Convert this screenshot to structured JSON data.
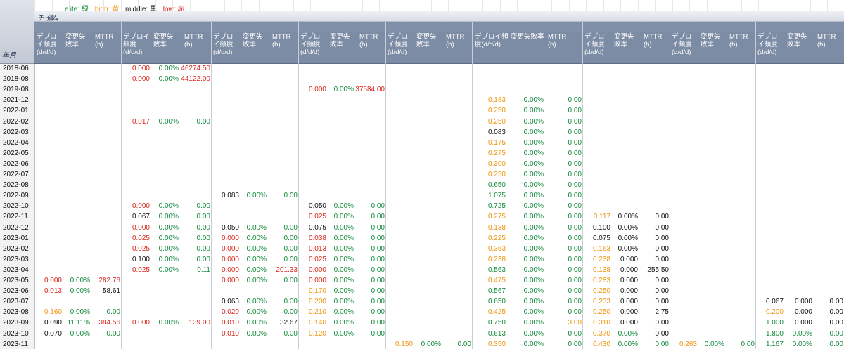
{
  "legend": [
    {
      "text": "elite: 緑",
      "color": "#118a3a"
    },
    {
      "text": "high: 黄",
      "color": "#f0940a"
    },
    {
      "text": "middle: 黒",
      "color": "#111111"
    },
    {
      "text": "low: 赤",
      "color": "#d9261c"
    }
  ],
  "header": {
    "team_label": "チーム",
    "value_label": "値",
    "row_header_label": "年月",
    "groups": [
      [
        "デプロ\nイ頻度\n(d/d/d)",
        "変更失\n敗率",
        "MTTR\n(h)"
      ],
      [
        "デプロイ\n頻度\n(d/d/d)",
        "変更失\n敗率",
        "MTTR\n(h)"
      ],
      [
        "デプロ\nイ頻度\n(d/d/d)",
        "変更失\n敗率",
        "MTTR\n(h)"
      ],
      [
        "デプロ\nイ頻度\n(d/d/d)",
        "変更失\n敗率",
        "MTTR\n(h)"
      ],
      [
        "デプロ\nイ頻度\n(d/d/d)",
        "変更失\n敗率",
        "MTTR\n(h)"
      ],
      [
        "デプロイ頻\n度(d/d/d)",
        "変更失敗率",
        "MTTR\n(h)"
      ],
      [
        "デプロ\nイ頻度\n(d/d/d)",
        "変更失\n敗率",
        "MTTR\n(h)"
      ],
      [
        "デプロ\nイ頻度\n(d/d/d)",
        "変更失\n敗率",
        "MTTR\n(h)"
      ],
      [
        "デプロ\nイ頻度\n(d/d/d)",
        "変更失\n敗率",
        "MTTR\n(h)"
      ]
    ]
  },
  "colors": {
    "e": "#118a3a",
    "h": "#f0940a",
    "m": "#111111",
    "l": "#d9261c"
  },
  "rows": [
    {
      "ym": "2018-06",
      "cells": [
        null,
        [
          "0.000",
          "l",
          "0.00%",
          "e",
          "46274.50",
          "l"
        ],
        null,
        null,
        null,
        null,
        null,
        null,
        null
      ]
    },
    {
      "ym": "2018-08",
      "cells": [
        null,
        [
          "0.000",
          "l",
          "0.00%",
          "e",
          "44122.00",
          "l"
        ],
        null,
        null,
        null,
        null,
        null,
        null,
        null
      ]
    },
    {
      "ym": "2019-08",
      "cells": [
        null,
        null,
        null,
        [
          "0.000",
          "l",
          "0.00%",
          "e",
          "37584.00",
          "l"
        ],
        null,
        null,
        null,
        null,
        null
      ]
    },
    {
      "ym": "2021-12",
      "cells": [
        null,
        null,
        null,
        null,
        null,
        [
          "0.183",
          "h",
          "0.00%",
          "e",
          "0.00",
          "e"
        ],
        null,
        null,
        null
      ]
    },
    {
      "ym": "2022-01",
      "cells": [
        null,
        null,
        null,
        null,
        null,
        [
          "0.250",
          "h",
          "0.00%",
          "e",
          "0.00",
          "e"
        ],
        null,
        null,
        null
      ]
    },
    {
      "ym": "2022-02",
      "cells": [
        null,
        [
          "0.017",
          "l",
          "0.00%",
          "e",
          "0.00",
          "e"
        ],
        null,
        null,
        null,
        [
          "0.250",
          "h",
          "0.00%",
          "e",
          "0.00",
          "e"
        ],
        null,
        null,
        null
      ]
    },
    {
      "ym": "2022-03",
      "cells": [
        null,
        null,
        null,
        null,
        null,
        [
          "0.083",
          "m",
          "0.00%",
          "e",
          "0.00",
          "e"
        ],
        null,
        null,
        null
      ]
    },
    {
      "ym": "2022-04",
      "cells": [
        null,
        null,
        null,
        null,
        null,
        [
          "0.175",
          "h",
          "0.00%",
          "e",
          "0.00",
          "e"
        ],
        null,
        null,
        null
      ]
    },
    {
      "ym": "2022-05",
      "cells": [
        null,
        null,
        null,
        null,
        null,
        [
          "0.275",
          "h",
          "0.00%",
          "e",
          "0.00",
          "e"
        ],
        null,
        null,
        null
      ]
    },
    {
      "ym": "2022-06",
      "cells": [
        null,
        null,
        null,
        null,
        null,
        [
          "0.300",
          "h",
          "0.00%",
          "e",
          "0.00",
          "e"
        ],
        null,
        null,
        null
      ]
    },
    {
      "ym": "2022-07",
      "cells": [
        null,
        null,
        null,
        null,
        null,
        [
          "0.250",
          "h",
          "0.00%",
          "e",
          "0.00",
          "e"
        ],
        null,
        null,
        null
      ]
    },
    {
      "ym": "2022-08",
      "cells": [
        null,
        null,
        null,
        null,
        null,
        [
          "0.650",
          "e",
          "0.00%",
          "e",
          "0.00",
          "e"
        ],
        null,
        null,
        null
      ]
    },
    {
      "ym": "2022-09",
      "cells": [
        null,
        null,
        [
          "0.083",
          "m",
          "0.00%",
          "e",
          "0.00",
          "e"
        ],
        null,
        null,
        [
          "1.075",
          "e",
          "0.00%",
          "e",
          "0.00",
          "e"
        ],
        null,
        null,
        null
      ]
    },
    {
      "ym": "2022-10",
      "cells": [
        null,
        [
          "0.000",
          "l",
          "0.00%",
          "e",
          "0.00",
          "e"
        ],
        null,
        [
          "0.050",
          "m",
          "0.00%",
          "e",
          "0.00",
          "e"
        ],
        null,
        [
          "0.725",
          "e",
          "0.00%",
          "e",
          "0.00",
          "e"
        ],
        null,
        null,
        null
      ]
    },
    {
      "ym": "2022-11",
      "cells": [
        null,
        [
          "0.067",
          "m",
          "0.00%",
          "e",
          "0.00",
          "e"
        ],
        null,
        [
          "0.025",
          "l",
          "0.00%",
          "e",
          "0.00",
          "e"
        ],
        null,
        [
          "0.275",
          "h",
          "0.00%",
          "e",
          "0.00",
          "e"
        ],
        [
          "0.117",
          "h",
          "0.00%",
          "m",
          "0.00",
          "m"
        ],
        null,
        null
      ]
    },
    {
      "ym": "2022-12",
      "cells": [
        null,
        [
          "0.000",
          "l",
          "0.00%",
          "e",
          "0.00",
          "e"
        ],
        [
          "0.050",
          "m",
          "0.00%",
          "e",
          "0.00",
          "e"
        ],
        [
          "0.075",
          "m",
          "0.00%",
          "e",
          "0.00",
          "e"
        ],
        null,
        [
          "0.138",
          "h",
          "0.00%",
          "e",
          "0.00",
          "e"
        ],
        [
          "0.100",
          "m",
          "0.00%",
          "m",
          "0.00",
          "m"
        ],
        null,
        null
      ]
    },
    {
      "ym": "2023-01",
      "cells": [
        null,
        [
          "0.025",
          "l",
          "0.00%",
          "e",
          "0.00",
          "e"
        ],
        [
          "0.000",
          "l",
          "0.00%",
          "e",
          "0.00",
          "e"
        ],
        [
          "0.038",
          "l",
          "0.00%",
          "e",
          "0.00",
          "e"
        ],
        null,
        [
          "0.225",
          "h",
          "0.00%",
          "e",
          "0.00",
          "e"
        ],
        [
          "0.075",
          "m",
          "0.00%",
          "m",
          "0.00",
          "m"
        ],
        null,
        null
      ]
    },
    {
      "ym": "2023-02",
      "cells": [
        null,
        [
          "0.025",
          "l",
          "0.00%",
          "e",
          "0.00",
          "e"
        ],
        [
          "0.000",
          "l",
          "0.00%",
          "e",
          "0.00",
          "e"
        ],
        [
          "0.013",
          "l",
          "0.00%",
          "e",
          "0.00",
          "e"
        ],
        null,
        [
          "0.363",
          "h",
          "0.00%",
          "e",
          "0.00",
          "e"
        ],
        [
          "0.163",
          "h",
          "0.00%",
          "m",
          "0.00",
          "m"
        ],
        null,
        null
      ]
    },
    {
      "ym": "2023-03",
      "cells": [
        null,
        [
          "0.100",
          "m",
          "0.00%",
          "e",
          "0.00",
          "e"
        ],
        [
          "0.000",
          "l",
          "0.00%",
          "e",
          "0.00",
          "e"
        ],
        [
          "0.025",
          "l",
          "0.00%",
          "e",
          "0.00",
          "e"
        ],
        null,
        [
          "0.238",
          "h",
          "0.00%",
          "e",
          "0.00",
          "e"
        ],
        [
          "0.238",
          "h",
          "0.000",
          "m",
          "0.00",
          "m"
        ],
        null,
        null
      ]
    },
    {
      "ym": "2023-04",
      "cells": [
        null,
        [
          "0.025",
          "l",
          "0.00%",
          "e",
          "0.11",
          "e"
        ],
        [
          "0.000",
          "l",
          "0.00%",
          "e",
          "201.33",
          "l"
        ],
        [
          "0.000",
          "l",
          "0.00%",
          "e",
          "0.00",
          "e"
        ],
        null,
        [
          "0.563",
          "e",
          "0.00%",
          "e",
          "0.00",
          "e"
        ],
        [
          "0.138",
          "h",
          "0.000",
          "m",
          "255.50",
          "m"
        ],
        null,
        null
      ]
    },
    {
      "ym": "2023-05",
      "cells": [
        [
          "0.000",
          "l",
          "0.00%",
          "e",
          "282.76",
          "l"
        ],
        null,
        [
          "0.000",
          "l",
          "0.00%",
          "e",
          "0.00",
          "e"
        ],
        [
          "0.000",
          "l",
          "0.00%",
          "e",
          "0.00",
          "e"
        ],
        null,
        [
          "0.475",
          "h",
          "0.00%",
          "e",
          "0.00",
          "e"
        ],
        [
          "0.283",
          "h",
          "0.000",
          "m",
          "0.00",
          "m"
        ],
        null,
        null
      ]
    },
    {
      "ym": "2023-06",
      "cells": [
        [
          "0.013",
          "l",
          "0.00%",
          "e",
          "58.61",
          "m"
        ],
        null,
        null,
        [
          "0.170",
          "h",
          "0.00%",
          "e",
          "0.00",
          "e"
        ],
        null,
        [
          "0.567",
          "e",
          "0.00%",
          "e",
          "0.00",
          "e"
        ],
        [
          "0.250",
          "h",
          "0.000",
          "m",
          "0.00",
          "m"
        ],
        null,
        null
      ]
    },
    {
      "ym": "2023-07",
      "cells": [
        null,
        null,
        [
          "0.063",
          "m",
          "0.00%",
          "e",
          "0.00",
          "e"
        ],
        [
          "0.200",
          "h",
          "0.00%",
          "e",
          "0.00",
          "e"
        ],
        null,
        [
          "0.650",
          "e",
          "0.00%",
          "e",
          "0.00",
          "e"
        ],
        [
          "0.233",
          "h",
          "0.000",
          "m",
          "0.00",
          "m"
        ],
        null,
        [
          "0.067",
          "m",
          "0.000",
          "m",
          "0.00",
          "m"
        ]
      ]
    },
    {
      "ym": "2023-08",
      "cells": [
        [
          "0.160",
          "h",
          "0.00%",
          "e",
          "0.00",
          "e"
        ],
        null,
        [
          "0.020",
          "l",
          "0.00%",
          "e",
          "0.00",
          "e"
        ],
        [
          "0.210",
          "h",
          "0.00%",
          "e",
          "0.00",
          "e"
        ],
        null,
        [
          "0.425",
          "h",
          "0.00%",
          "e",
          "0.00",
          "e"
        ],
        [
          "0.250",
          "h",
          "0.000",
          "m",
          "2.75",
          "m"
        ],
        null,
        [
          "0.200",
          "h",
          "0.000",
          "m",
          "0.00",
          "m"
        ]
      ]
    },
    {
      "ym": "2023-09",
      "cells": [
        [
          "0.090",
          "m",
          "11.11%",
          "e",
          "384.56",
          "l"
        ],
        [
          "0.000",
          "l",
          "0.00%",
          "e",
          "139.00",
          "l"
        ],
        [
          "0.010",
          "l",
          "0.00%",
          "e",
          "32.67",
          "m"
        ],
        [
          "0.140",
          "h",
          "0.00%",
          "e",
          "0.00",
          "e"
        ],
        null,
        [
          "0.750",
          "e",
          "0.00%",
          "e",
          "3.00",
          "h"
        ],
        [
          "0.310",
          "h",
          "0.000",
          "m",
          "0.00",
          "m"
        ],
        null,
        [
          "1.000",
          "e",
          "0.000",
          "m",
          "0.00",
          "m"
        ]
      ]
    },
    {
      "ym": "2023-10",
      "cells": [
        [
          "0.070",
          "m",
          "0.00%",
          "e",
          "0.00",
          "e"
        ],
        null,
        [
          "0.010",
          "l",
          "0.00%",
          "e",
          "0.00",
          "e"
        ],
        [
          "0.120",
          "h",
          "0.00%",
          "e",
          "0.00",
          "e"
        ],
        null,
        [
          "0.613",
          "e",
          "0.00%",
          "e",
          "0.00",
          "e"
        ],
        [
          "0.370",
          "h",
          "0.00%",
          "e",
          "0.00",
          "m"
        ],
        null,
        [
          "1.800",
          "e",
          "0.00%",
          "e",
          "0.00",
          "e"
        ]
      ]
    },
    {
      "ym": "2023-11",
      "cells": [
        null,
        null,
        null,
        null,
        [
          "0.150",
          "h",
          "0.00%",
          "e",
          "0.00",
          "e"
        ],
        [
          "0.350",
          "h",
          "0.00%",
          "e",
          "0.00",
          "e"
        ],
        [
          "0.430",
          "h",
          "0.00%",
          "e",
          "0.00",
          "e"
        ],
        [
          "0.263",
          "h",
          "0.00%",
          "e",
          "0.00",
          "e"
        ],
        [
          "1.167",
          "e",
          "0.00%",
          "e",
          "0.00",
          "e"
        ]
      ]
    }
  ]
}
